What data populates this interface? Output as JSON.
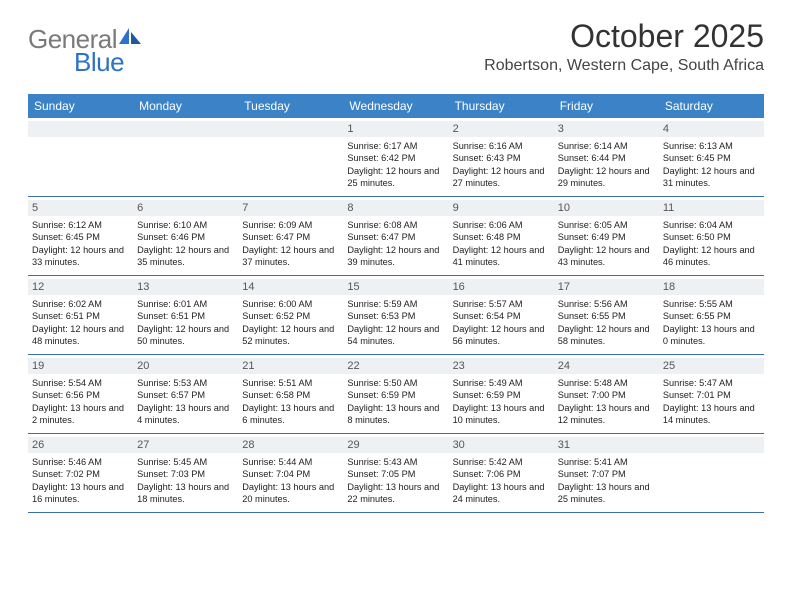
{
  "brand": {
    "name_grey": "General",
    "name_blue": "Blue"
  },
  "title": {
    "month": "October 2025",
    "location": "Robertson, Western Cape, South Africa"
  },
  "colors": {
    "header_bg": "#3b82c7",
    "header_text": "#ffffff",
    "day_strip_bg": "#eef1f3",
    "row_border": "#3b6fa8",
    "logo_grey": "#7a7a7a",
    "logo_blue": "#2d72c6"
  },
  "weekdays": [
    "Sunday",
    "Monday",
    "Tuesday",
    "Wednesday",
    "Thursday",
    "Friday",
    "Saturday"
  ],
  "weeks": [
    [
      {
        "n": "",
        "sun": "",
        "set": "",
        "day": ""
      },
      {
        "n": "",
        "sun": "",
        "set": "",
        "day": ""
      },
      {
        "n": "",
        "sun": "",
        "set": "",
        "day": ""
      },
      {
        "n": "1",
        "sun": "Sunrise: 6:17 AM",
        "set": "Sunset: 6:42 PM",
        "day": "Daylight: 12 hours and 25 minutes."
      },
      {
        "n": "2",
        "sun": "Sunrise: 6:16 AM",
        "set": "Sunset: 6:43 PM",
        "day": "Daylight: 12 hours and 27 minutes."
      },
      {
        "n": "3",
        "sun": "Sunrise: 6:14 AM",
        "set": "Sunset: 6:44 PM",
        "day": "Daylight: 12 hours and 29 minutes."
      },
      {
        "n": "4",
        "sun": "Sunrise: 6:13 AM",
        "set": "Sunset: 6:45 PM",
        "day": "Daylight: 12 hours and 31 minutes."
      }
    ],
    [
      {
        "n": "5",
        "sun": "Sunrise: 6:12 AM",
        "set": "Sunset: 6:45 PM",
        "day": "Daylight: 12 hours and 33 minutes."
      },
      {
        "n": "6",
        "sun": "Sunrise: 6:10 AM",
        "set": "Sunset: 6:46 PM",
        "day": "Daylight: 12 hours and 35 minutes."
      },
      {
        "n": "7",
        "sun": "Sunrise: 6:09 AM",
        "set": "Sunset: 6:47 PM",
        "day": "Daylight: 12 hours and 37 minutes."
      },
      {
        "n": "8",
        "sun": "Sunrise: 6:08 AM",
        "set": "Sunset: 6:47 PM",
        "day": "Daylight: 12 hours and 39 minutes."
      },
      {
        "n": "9",
        "sun": "Sunrise: 6:06 AM",
        "set": "Sunset: 6:48 PM",
        "day": "Daylight: 12 hours and 41 minutes."
      },
      {
        "n": "10",
        "sun": "Sunrise: 6:05 AM",
        "set": "Sunset: 6:49 PM",
        "day": "Daylight: 12 hours and 43 minutes."
      },
      {
        "n": "11",
        "sun": "Sunrise: 6:04 AM",
        "set": "Sunset: 6:50 PM",
        "day": "Daylight: 12 hours and 46 minutes."
      }
    ],
    [
      {
        "n": "12",
        "sun": "Sunrise: 6:02 AM",
        "set": "Sunset: 6:51 PM",
        "day": "Daylight: 12 hours and 48 minutes."
      },
      {
        "n": "13",
        "sun": "Sunrise: 6:01 AM",
        "set": "Sunset: 6:51 PM",
        "day": "Daylight: 12 hours and 50 minutes."
      },
      {
        "n": "14",
        "sun": "Sunrise: 6:00 AM",
        "set": "Sunset: 6:52 PM",
        "day": "Daylight: 12 hours and 52 minutes."
      },
      {
        "n": "15",
        "sun": "Sunrise: 5:59 AM",
        "set": "Sunset: 6:53 PM",
        "day": "Daylight: 12 hours and 54 minutes."
      },
      {
        "n": "16",
        "sun": "Sunrise: 5:57 AM",
        "set": "Sunset: 6:54 PM",
        "day": "Daylight: 12 hours and 56 minutes."
      },
      {
        "n": "17",
        "sun": "Sunrise: 5:56 AM",
        "set": "Sunset: 6:55 PM",
        "day": "Daylight: 12 hours and 58 minutes."
      },
      {
        "n": "18",
        "sun": "Sunrise: 5:55 AM",
        "set": "Sunset: 6:55 PM",
        "day": "Daylight: 13 hours and 0 minutes."
      }
    ],
    [
      {
        "n": "19",
        "sun": "Sunrise: 5:54 AM",
        "set": "Sunset: 6:56 PM",
        "day": "Daylight: 13 hours and 2 minutes."
      },
      {
        "n": "20",
        "sun": "Sunrise: 5:53 AM",
        "set": "Sunset: 6:57 PM",
        "day": "Daylight: 13 hours and 4 minutes."
      },
      {
        "n": "21",
        "sun": "Sunrise: 5:51 AM",
        "set": "Sunset: 6:58 PM",
        "day": "Daylight: 13 hours and 6 minutes."
      },
      {
        "n": "22",
        "sun": "Sunrise: 5:50 AM",
        "set": "Sunset: 6:59 PM",
        "day": "Daylight: 13 hours and 8 minutes."
      },
      {
        "n": "23",
        "sun": "Sunrise: 5:49 AM",
        "set": "Sunset: 6:59 PM",
        "day": "Daylight: 13 hours and 10 minutes."
      },
      {
        "n": "24",
        "sun": "Sunrise: 5:48 AM",
        "set": "Sunset: 7:00 PM",
        "day": "Daylight: 13 hours and 12 minutes."
      },
      {
        "n": "25",
        "sun": "Sunrise: 5:47 AM",
        "set": "Sunset: 7:01 PM",
        "day": "Daylight: 13 hours and 14 minutes."
      }
    ],
    [
      {
        "n": "26",
        "sun": "Sunrise: 5:46 AM",
        "set": "Sunset: 7:02 PM",
        "day": "Daylight: 13 hours and 16 minutes."
      },
      {
        "n": "27",
        "sun": "Sunrise: 5:45 AM",
        "set": "Sunset: 7:03 PM",
        "day": "Daylight: 13 hours and 18 minutes."
      },
      {
        "n": "28",
        "sun": "Sunrise: 5:44 AM",
        "set": "Sunset: 7:04 PM",
        "day": "Daylight: 13 hours and 20 minutes."
      },
      {
        "n": "29",
        "sun": "Sunrise: 5:43 AM",
        "set": "Sunset: 7:05 PM",
        "day": "Daylight: 13 hours and 22 minutes."
      },
      {
        "n": "30",
        "sun": "Sunrise: 5:42 AM",
        "set": "Sunset: 7:06 PM",
        "day": "Daylight: 13 hours and 24 minutes."
      },
      {
        "n": "31",
        "sun": "Sunrise: 5:41 AM",
        "set": "Sunset: 7:07 PM",
        "day": "Daylight: 13 hours and 25 minutes."
      },
      {
        "n": "",
        "sun": "",
        "set": "",
        "day": ""
      }
    ]
  ]
}
